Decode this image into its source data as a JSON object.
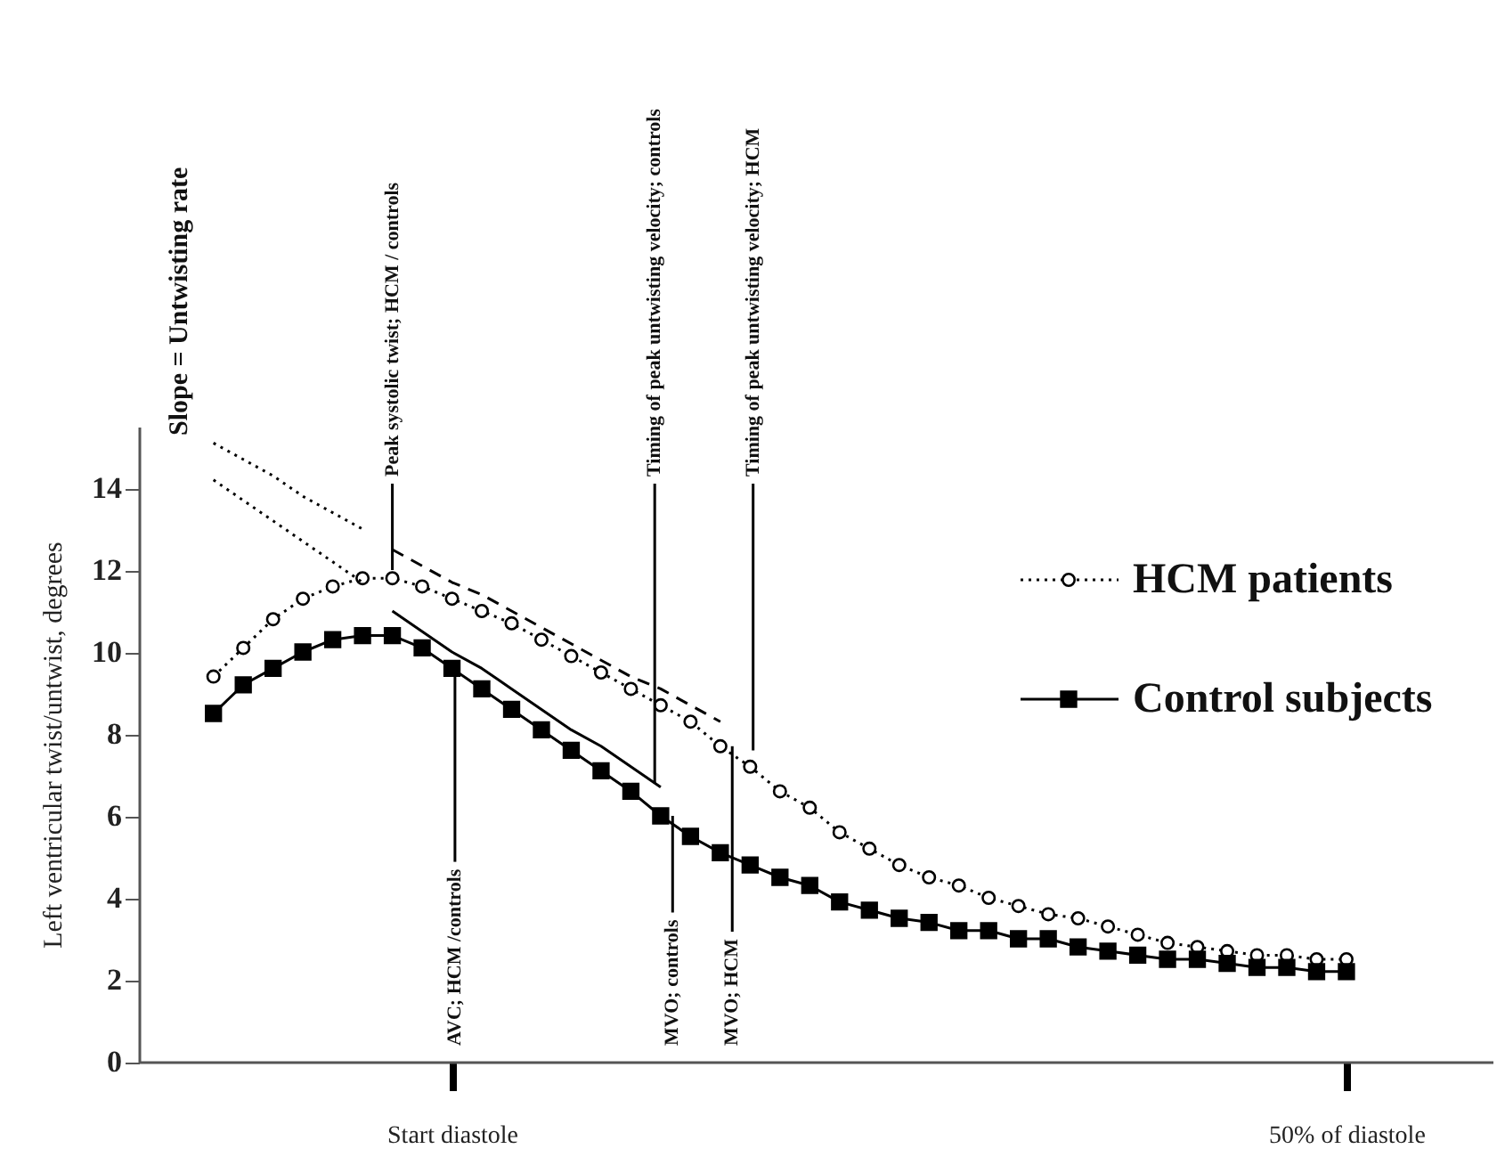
{
  "chart_data": {
    "type": "line",
    "ylabel": "Left ventricular twist/untwist, degrees",
    "categories": [
      null,
      null,
      null,
      null,
      null,
      null,
      null,
      null,
      "Start diastole",
      null,
      null,
      null,
      null,
      null,
      null,
      null,
      null,
      null,
      null,
      null,
      null,
      null,
      null,
      null,
      null,
      null,
      null,
      null,
      null,
      null,
      null,
      null,
      null,
      null,
      null,
      null,
      null,
      null,
      "50% of diastole"
    ],
    "ylim": [
      0,
      15.5
    ],
    "yticks": [
      0,
      2,
      4,
      6,
      8,
      10,
      12,
      14
    ],
    "legend": "right",
    "series": [
      {
        "name": "HCM patients",
        "color": "#000000",
        "marker": "circle",
        "line_style": "dotted",
        "values": [
          9.4,
          10.1,
          10.8,
          11.3,
          11.6,
          11.8,
          11.8,
          11.6,
          11.3,
          11.0,
          10.7,
          10.3,
          9.9,
          9.5,
          9.1,
          8.7,
          8.3,
          7.7,
          7.2,
          6.6,
          6.2,
          5.6,
          5.2,
          4.8,
          4.5,
          4.3,
          4.0,
          3.8,
          3.6,
          3.5,
          3.3,
          3.1,
          2.9,
          2.8,
          2.7,
          2.6,
          2.6,
          2.5,
          2.5
        ]
      },
      {
        "name": "Control subjects",
        "color": "#000000",
        "marker": "square",
        "line_style": "solid",
        "values": [
          8.5,
          9.2,
          9.6,
          10.0,
          10.3,
          10.4,
          10.4,
          10.1,
          9.6,
          9.1,
          8.6,
          8.1,
          7.6,
          7.1,
          6.6,
          6.0,
          5.5,
          5.1,
          4.8,
          4.5,
          4.3,
          3.9,
          3.7,
          3.5,
          3.4,
          3.2,
          3.2,
          3.0,
          3.0,
          2.8,
          2.7,
          2.6,
          2.5,
          2.5,
          2.4,
          2.3,
          2.3,
          2.2,
          2.2
        ]
      },
      {
        "type": "line",
        "color": "#000000",
        "marker": "none",
        "line_style": "dotted",
        "values": [
          14.2,
          13.7,
          13.2,
          12.7,
          12.2,
          11.7,
          null,
          null,
          null,
          null,
          null,
          null,
          null,
          null,
          null,
          null,
          null,
          null,
          null,
          null,
          null,
          null,
          null,
          null,
          null,
          null,
          null,
          null,
          null,
          null,
          null,
          null,
          null,
          null,
          null,
          null,
          null,
          null,
          null
        ]
      },
      {
        "type": "line",
        "color": "#000000",
        "marker": "none",
        "line_style": "solid",
        "values": [
          null,
          null,
          null,
          null,
          null,
          null,
          11.0,
          10.5,
          10.0,
          9.6,
          9.1,
          8.6,
          8.1,
          7.7,
          7.2,
          6.7,
          null,
          null,
          null,
          null,
          null,
          null,
          null,
          null,
          null,
          null,
          null,
          null,
          null,
          null,
          null,
          null,
          null,
          null,
          null,
          null,
          null,
          null,
          null
        ]
      },
      {
        "type": "line",
        "color": "#000000",
        "marker": "none",
        "line_style": "dotted",
        "values": [
          15.1,
          14.7,
          14.3,
          13.8,
          13.4,
          13.0,
          null,
          null,
          null,
          null,
          null,
          null,
          null,
          null,
          null,
          null,
          null,
          null,
          null,
          null,
          null,
          null,
          null,
          null,
          null,
          null,
          null,
          null,
          null,
          null,
          null,
          null,
          null,
          null,
          null,
          null,
          null,
          null,
          null
        ]
      },
      {
        "type": "line",
        "color": "#000000",
        "marker": "none",
        "line_style": "dashed",
        "values": [
          null,
          null,
          null,
          null,
          null,
          null,
          12.5,
          12.1,
          11.7,
          11.4,
          11.0,
          10.6,
          10.2,
          9.8,
          9.4,
          9.1,
          8.7,
          8.3,
          null,
          null,
          null,
          null,
          null,
          null,
          null,
          null,
          null,
          null,
          null,
          null,
          null,
          null,
          null,
          null,
          null,
          null,
          null,
          null,
          null
        ]
      }
    ],
    "annotations": [
      "Slope = Untwisting rate",
      {
        "text": "Peak systolic twist; HCM / controls",
        "y": 12.0
      },
      {
        "text": "AVC; HCM /controls",
        "y": 9.6
      },
      {
        "text": "Timing of peak untwisting velocity; controls",
        "y": 6.8
      },
      {
        "text": "MVO; controls",
        "y": 6.0
      },
      {
        "text": "Timing of peak untwisting velocity; HCM",
        "y": 7.6
      },
      {
        "text": "MVO; HCM",
        "y": 7.7
      }
    ]
  }
}
